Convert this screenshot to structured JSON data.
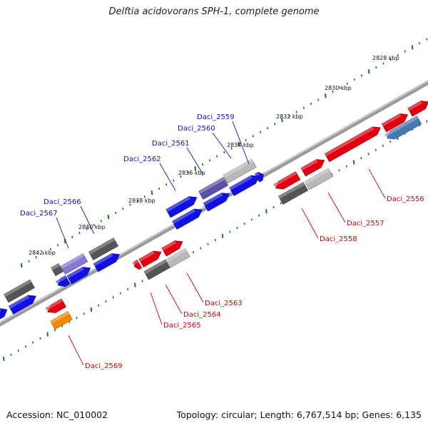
{
  "title": "Delftia acidovorans SPH-1, complete genome",
  "footer": {
    "accession": "Accession: NC_010002",
    "summary": "Topology: circular; Length: 6,767,514 bp; Genes: 6,135"
  },
  "ticks_upper": [
    "2828 kbp",
    "2830 kbp",
    "2832 kbp",
    "2834 kbp",
    "2836 kbp",
    "2838 kbp",
    "2840 kbp",
    "2842 kbp"
  ],
  "genes_upper": [
    "Daci_2559",
    "Daci_2560",
    "Daci_2561",
    "Daci_2562",
    "Daci_2566",
    "Daci_2567"
  ],
  "genes_lower": [
    "Daci_2556",
    "Daci_2557",
    "Daci_2558",
    "Daci_2563",
    "Daci_2564",
    "Daci_2565",
    "Daci_2569"
  ],
  "colors": {
    "blue": "#1010e0",
    "red": "#e00010",
    "dark_gray": "#555555",
    "light_gray": "#b8b8b8",
    "purple": "#5a50a8",
    "lavender": "#8878d0",
    "steel_blue": "#4878b0",
    "orange": "#f08800",
    "tick_green": "#1a7a1a",
    "backbone": "#8a8a8a"
  }
}
